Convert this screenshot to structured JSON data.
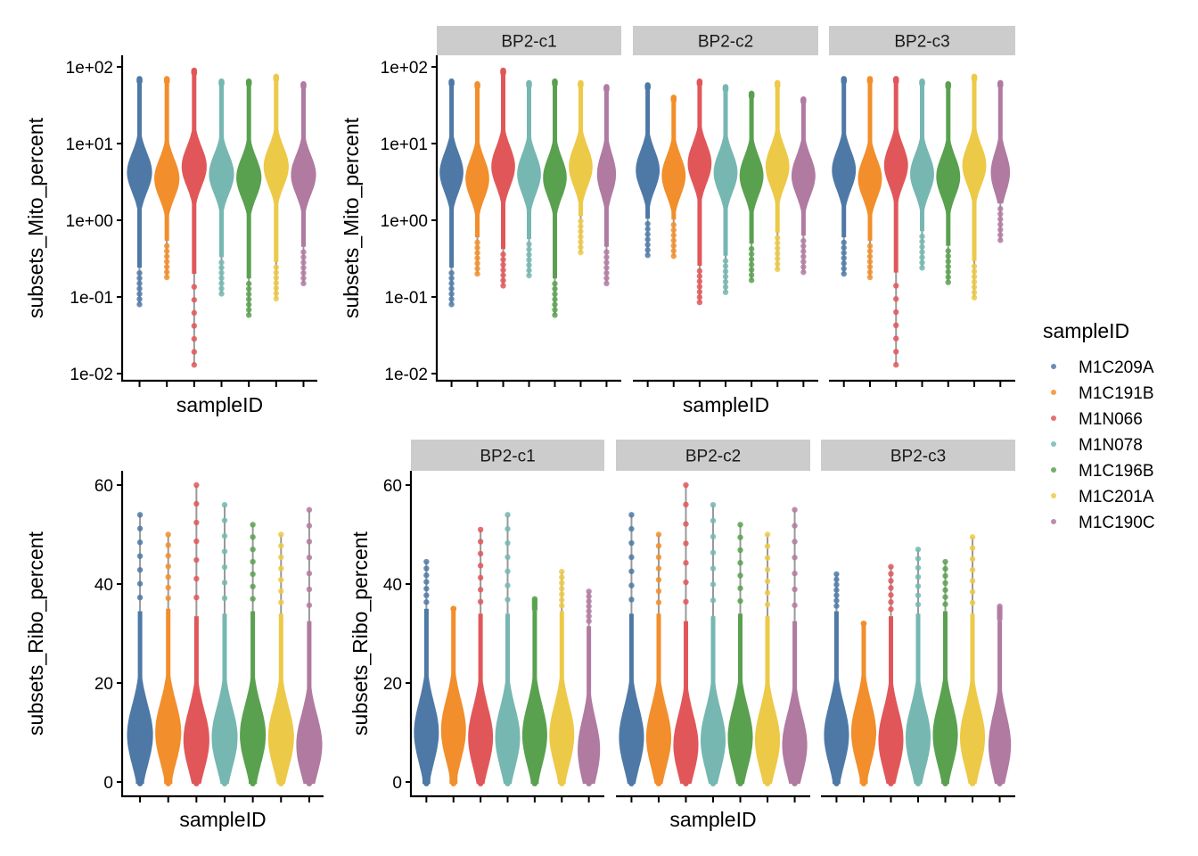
{
  "chart_data": {
    "type": "violin",
    "legend": {
      "title": "sampleID",
      "position": "right",
      "items": [
        {
          "label": "M1C209A",
          "color": "#4E79A7"
        },
        {
          "label": "M1C191B",
          "color": "#F28E2B"
        },
        {
          "label": "M1N066",
          "color": "#E15759"
        },
        {
          "label": "M1N078",
          "color": "#76B7B2"
        },
        {
          "label": "M1C196B",
          "color": "#59A14F"
        },
        {
          "label": "M1C201A",
          "color": "#EDC948"
        },
        {
          "label": "M1C190C",
          "color": "#B07AA1"
        }
      ]
    },
    "panels": [
      {
        "id": "mito-overall",
        "ylabel": "subsets_Mito_percent",
        "xlabel": "sampleID",
        "yscale": "log10",
        "ylim": [
          0.01,
          100
        ],
        "yticks": [
          "1e-02",
          "1e-01",
          "1e+00",
          "1e+01",
          "1e+02"
        ],
        "ytick_values": [
          0.01,
          0.1,
          1,
          10,
          100
        ],
        "facets": [
          {
            "strip": null,
            "groups": [
              {
                "median": 4.2,
                "min": 0.08,
                "max": 70,
                "width": 1.0
              },
              {
                "median": 3.5,
                "min": 0.18,
                "max": 70,
                "width": 1.0
              },
              {
                "median": 5.0,
                "min": 0.013,
                "max": 90,
                "width": 1.0
              },
              {
                "median": 4.0,
                "min": 0.11,
                "max": 65,
                "width": 1.0
              },
              {
                "median": 3.6,
                "min": 0.058,
                "max": 65,
                "width": 1.0
              },
              {
                "median": 5.0,
                "min": 0.095,
                "max": 75,
                "width": 1.0
              },
              {
                "median": 3.9,
                "min": 0.15,
                "max": 60,
                "width": 1.0
              }
            ]
          }
        ]
      },
      {
        "id": "mito-by-condition",
        "ylabel": "subsets_Mito_percent",
        "xlabel": "sampleID",
        "yscale": "log10",
        "ylim": [
          0.01,
          100
        ],
        "yticks": [
          "1e-02",
          "1e-01",
          "1e+00",
          "1e+01",
          "1e+02"
        ],
        "ytick_values": [
          0.01,
          0.1,
          1,
          10,
          100
        ],
        "facets": [
          {
            "strip": "BP2-c1",
            "groups": [
              {
                "median": 4.2,
                "min": 0.08,
                "max": 65,
                "width": 1.0
              },
              {
                "median": 3.5,
                "min": 0.2,
                "max": 60,
                "width": 1.0
              },
              {
                "median": 5.0,
                "min": 0.14,
                "max": 90,
                "width": 1.0
              },
              {
                "median": 4.0,
                "min": 0.19,
                "max": 62,
                "width": 1.0
              },
              {
                "median": 3.6,
                "min": 0.058,
                "max": 65,
                "width": 1.0
              },
              {
                "median": 5.0,
                "min": 0.38,
                "max": 62,
                "width": 1.0
              },
              {
                "median": 4.0,
                "min": 0.15,
                "max": 55,
                "width": 0.8
              }
            ]
          },
          {
            "strip": "BP2-c2",
            "groups": [
              {
                "median": 4.5,
                "min": 0.35,
                "max": 58,
                "width": 1.0
              },
              {
                "median": 3.8,
                "min": 0.34,
                "max": 40,
                "width": 1.0
              },
              {
                "median": 5.5,
                "min": 0.085,
                "max": 65,
                "width": 1.0
              },
              {
                "median": 4.2,
                "min": 0.115,
                "max": 55,
                "width": 1.0
              },
              {
                "median": 3.8,
                "min": 0.165,
                "max": 45,
                "width": 1.0
              },
              {
                "median": 5.0,
                "min": 0.23,
                "max": 62,
                "width": 1.0
              },
              {
                "median": 3.8,
                "min": 0.21,
                "max": 38,
                "width": 1.0
              }
            ]
          },
          {
            "strip": "BP2-c3",
            "groups": [
              {
                "median": 4.5,
                "min": 0.2,
                "max": 70,
                "width": 1.0
              },
              {
                "median": 3.5,
                "min": 0.18,
                "max": 70,
                "width": 1.0
              },
              {
                "median": 5.2,
                "min": 0.013,
                "max": 70,
                "width": 1.0
              },
              {
                "median": 4.0,
                "min": 0.24,
                "max": 65,
                "width": 1.0
              },
              {
                "median": 3.7,
                "min": 0.155,
                "max": 60,
                "width": 1.0
              },
              {
                "median": 5.2,
                "min": 0.098,
                "max": 75,
                "width": 1.0
              },
              {
                "median": 4.2,
                "min": 0.55,
                "max": 62,
                "width": 0.8
              }
            ]
          }
        ]
      },
      {
        "id": "ribo-overall",
        "ylabel": "subsets_Ribo_percent",
        "xlabel": "sampleID",
        "yscale": "linear",
        "ylim": [
          -3,
          63
        ],
        "yticks": [
          "0",
          "20",
          "40",
          "60"
        ],
        "ytick_values": [
          0,
          20,
          40,
          60
        ],
        "facets": [
          {
            "strip": null,
            "groups": [
              {
                "median": 9.5,
                "min": 0,
                "max": 54,
                "width": 1.0
              },
              {
                "median": 10.0,
                "min": 0,
                "max": 50,
                "width": 1.0
              },
              {
                "median": 8.5,
                "min": 0,
                "max": 60,
                "width": 1.0
              },
              {
                "median": 9.0,
                "min": 0,
                "max": 56,
                "width": 1.0
              },
              {
                "median": 9.5,
                "min": 0,
                "max": 52,
                "width": 1.0
              },
              {
                "median": 9.0,
                "min": 0,
                "max": 50,
                "width": 1.0
              },
              {
                "median": 7.5,
                "min": 0,
                "max": 55,
                "width": 1.0
              }
            ]
          }
        ]
      },
      {
        "id": "ribo-by-condition",
        "ylabel": "subsets_Ribo_percent",
        "xlabel": "sampleID",
        "yscale": "linear",
        "ylim": [
          -3,
          63
        ],
        "yticks": [
          "0",
          "20",
          "40",
          "60"
        ],
        "ytick_values": [
          0,
          20,
          40,
          60
        ],
        "facets": [
          {
            "strip": "BP2-c1",
            "groups": [
              {
                "median": 10.0,
                "min": 0,
                "max": 44.5,
                "width": 1.0
              },
              {
                "median": 10.5,
                "min": 0,
                "max": 35,
                "width": 1.0
              },
              {
                "median": 9.0,
                "min": 0,
                "max": 51,
                "width": 1.0
              },
              {
                "median": 9.0,
                "min": 0,
                "max": 54,
                "width": 1.0
              },
              {
                "median": 9.5,
                "min": 0,
                "max": 37,
                "width": 1.0
              },
              {
                "median": 9.5,
                "min": 0,
                "max": 42.5,
                "width": 1.0
              },
              {
                "median": 6.5,
                "min": 0,
                "max": 38.5,
                "width": 0.9
              }
            ]
          },
          {
            "strip": "BP2-c2",
            "groups": [
              {
                "median": 9.0,
                "min": 0,
                "max": 54,
                "width": 1.0
              },
              {
                "median": 9.0,
                "min": 0,
                "max": 50,
                "width": 1.0
              },
              {
                "median": 7.5,
                "min": 0,
                "max": 60,
                "width": 1.0
              },
              {
                "median": 8.5,
                "min": 0,
                "max": 56,
                "width": 1.0
              },
              {
                "median": 9.0,
                "min": 0,
                "max": 52,
                "width": 1.0
              },
              {
                "median": 8.5,
                "min": 0,
                "max": 50,
                "width": 1.0
              },
              {
                "median": 7.5,
                "min": 0,
                "max": 55,
                "width": 1.0
              }
            ]
          },
          {
            "strip": "BP2-c3",
            "groups": [
              {
                "median": 9.5,
                "min": 0,
                "max": 42,
                "width": 1.0
              },
              {
                "median": 10.0,
                "min": 0,
                "max": 32,
                "width": 1.0
              },
              {
                "median": 8.5,
                "min": 0,
                "max": 43.5,
                "width": 1.0
              },
              {
                "median": 9.0,
                "min": 0,
                "max": 47,
                "width": 1.0
              },
              {
                "median": 9.5,
                "min": 0,
                "max": 44.5,
                "width": 1.0
              },
              {
                "median": 9.0,
                "min": 0,
                "max": 49.5,
                "width": 1.0
              },
              {
                "median": 7.5,
                "min": 0,
                "max": 35.5,
                "width": 0.9
              }
            ]
          }
        ]
      }
    ]
  }
}
